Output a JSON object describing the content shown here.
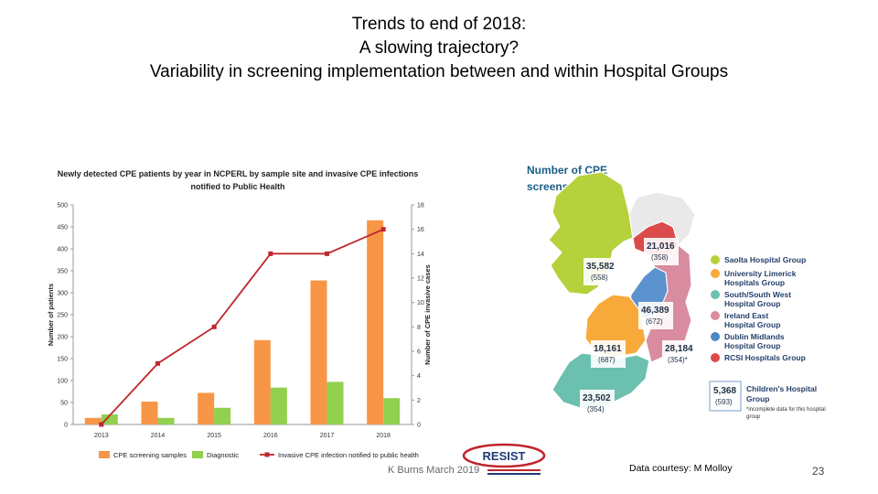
{
  "slide": {
    "title_lines": [
      "Trends to end of 2018:",
      "A slowing trajectory?",
      "Variability in screening implementation between and within Hospital Groups"
    ],
    "footer_credit": "K Burns March 2019",
    "logo": "RESIST",
    "data_courtesy": "Data courtesy: M Molloy",
    "page_number": "23"
  },
  "chart_data": {
    "type": "bar",
    "title_lines": [
      "Newly detected CPE patients by year in NCPERL by sample site and invasive CPE infections",
      "notified to Public Health"
    ],
    "categories": [
      "2013",
      "2014",
      "2015",
      "2016",
      "2017",
      "2018"
    ],
    "ylabel": "Number of patients",
    "y2label": "Number of CPE invasive cases",
    "ylim": [
      0,
      500
    ],
    "y2lim": [
      0,
      18
    ],
    "yticks": [
      "0",
      "50",
      "100",
      "150",
      "200",
      "250",
      "300",
      "350",
      "400",
      "450",
      "500"
    ],
    "y2ticks": [
      "0",
      "2",
      "4",
      "6",
      "8",
      "10",
      "12",
      "14",
      "16",
      "18"
    ],
    "series": [
      {
        "name": "CPE screening samples",
        "type": "bar",
        "axis": "left",
        "color": "#f79646",
        "values": [
          15,
          52,
          72,
          192,
          328,
          465
        ]
      },
      {
        "name": "Diagnostic",
        "type": "bar",
        "axis": "left",
        "color": "#92d050",
        "values": [
          23,
          15,
          38,
          84,
          97,
          60
        ]
      },
      {
        "name": "Invasive CPE infection notified to public health",
        "type": "line",
        "axis": "right",
        "color": "#c0262d",
        "values": [
          0,
          5,
          8,
          14,
          14,
          16
        ]
      }
    ],
    "legend_position": "bottom",
    "grid": false
  },
  "map": {
    "title_lines": [
      "Number of CPE",
      "screens 2018"
    ],
    "regions": [
      {
        "value": "21,016",
        "sub": "(358)",
        "group": "RCSI Hospitals Group",
        "color": "#dc4b4b"
      },
      {
        "value": "35,582",
        "sub": "(558)",
        "group": "Saolta Hospital Group",
        "color": "#b5d13b"
      },
      {
        "value": "46,389",
        "sub": "(672)",
        "group": "Dublin Midlands Hospital Group",
        "color": "#5b92cf"
      },
      {
        "value": "18,161",
        "sub": "(687)",
        "group": "University Limerick Hospitals Group",
        "color": "#f7a93a"
      },
      {
        "value": "28,184",
        "sub": "(354)*",
        "group": "Ireland East Hospital Group",
        "color": "#d98ca0"
      },
      {
        "value": "23,502",
        "sub": "(354)",
        "group": "South/South West Hospital Group",
        "color": "#6cc0b0"
      },
      {
        "value": "5,368",
        "sub": "(593)",
        "group": "Children's Hospital Group",
        "color": "#ffffff"
      }
    ],
    "legend": [
      {
        "label_lines": [
          "Saolta Hospital Group"
        ],
        "color": "#b5d13b"
      },
      {
        "label_lines": [
          "University Limerick",
          "Hospitals Group"
        ],
        "color": "#f7a93a"
      },
      {
        "label_lines": [
          "South/South West",
          "Hospital Group"
        ],
        "color": "#6cc0b0"
      },
      {
        "label_lines": [
          "Ireland East",
          "Hospital Group"
        ],
        "color": "#d98ca0"
      },
      {
        "label_lines": [
          "Dublin Midlands",
          "Hospital Group"
        ],
        "color": "#4f86c6"
      },
      {
        "label_lines": [
          "RCSI Hospitals Group"
        ],
        "color": "#dc4b4b"
      }
    ],
    "children_group_lines": [
      "Children's Hospital",
      "Group"
    ],
    "note_lines": [
      "*incomplete data for this hospital",
      "group"
    ]
  }
}
